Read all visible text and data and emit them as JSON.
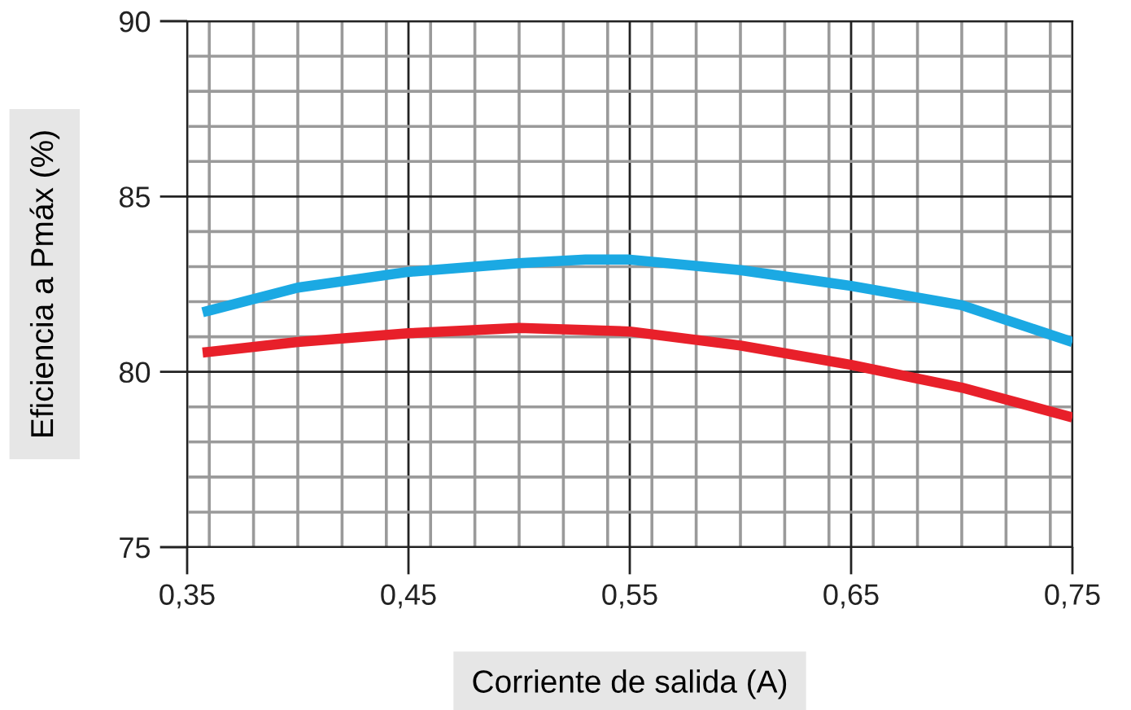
{
  "chart_data": {
    "type": "line",
    "xlabel": "Corriente de salida (A)",
    "ylabel": "Eficiencia a Pmáx (%)",
    "xlim": [
      0.35,
      0.75
    ],
    "ylim": [
      75,
      90
    ],
    "xticks": [
      {
        "value": 0.35,
        "label": "0,35"
      },
      {
        "value": 0.45,
        "label": "0,45"
      },
      {
        "value": 0.55,
        "label": "0,55"
      },
      {
        "value": 0.65,
        "label": "0,65"
      },
      {
        "value": 0.75,
        "label": "0,75"
      }
    ],
    "yticks": [
      75,
      80,
      85,
      90
    ],
    "grid": true,
    "marker": "none",
    "line_style": "solid",
    "series": [
      {
        "color": "#1ba9e3",
        "x": [
          0.357,
          0.4,
          0.45,
          0.5,
          0.53,
          0.55,
          0.6,
          0.65,
          0.7,
          0.75
        ],
        "values": [
          81.7,
          82.4,
          82.85,
          83.1,
          83.2,
          83.2,
          82.9,
          82.45,
          81.9,
          80.85
        ]
      },
      {
        "color": "#e8202a",
        "x": [
          0.357,
          0.4,
          0.45,
          0.5,
          0.55,
          0.6,
          0.65,
          0.7,
          0.75
        ],
        "values": [
          80.55,
          80.85,
          81.1,
          81.25,
          81.15,
          80.75,
          80.2,
          79.55,
          78.7
        ]
      }
    ]
  }
}
